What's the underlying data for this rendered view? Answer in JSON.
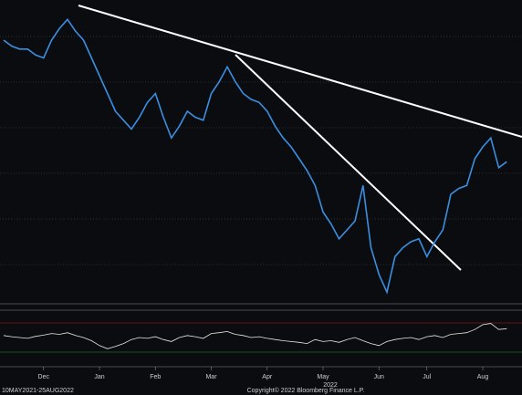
{
  "chart_data": [
    {
      "type": "line",
      "date_range": "10MAY2021-25AUG2022",
      "copyright": "Copyright© 2022 Bloomberg Finance L.P.",
      "year_label": "2022",
      "categories": [
        null,
        null,
        null,
        null,
        null,
        "Dec",
        null,
        null,
        null,
        null,
        null,
        null,
        "Jan",
        null,
        null,
        null,
        null,
        null,
        null,
        "Feb",
        null,
        null,
        null,
        null,
        null,
        null,
        "Mar",
        null,
        null,
        null,
        null,
        null,
        null,
        "Apr",
        null,
        null,
        null,
        null,
        null,
        null,
        "May",
        null,
        null,
        null,
        null,
        null,
        null,
        "Jun",
        null,
        null,
        null,
        null,
        null,
        "Jul",
        null,
        null,
        null,
        null,
        null,
        null,
        "Aug",
        null,
        null,
        null
      ],
      "series": [
        {
          "color": "#3a8fe0",
          "values": [
            88,
            86,
            85,
            85,
            83,
            82,
            88,
            92,
            95,
            91,
            88,
            82,
            76,
            70,
            64,
            61,
            58,
            62,
            67,
            70,
            62,
            55,
            59,
            64,
            62,
            61,
            70,
            74,
            79,
            74,
            70,
            68,
            67,
            64,
            59,
            55,
            52,
            48,
            44,
            39,
            30,
            26,
            21,
            24,
            27,
            39,
            18,
            9,
            3,
            15,
            18,
            20,
            21,
            15,
            20,
            24,
            36,
            38,
            39,
            48,
            52,
            55,
            45,
            47
          ]
        }
      ],
      "ylim": [
        0,
        100
      ]
    },
    {
      "type": "line",
      "series": [
        {
          "color": "#e8e8e8",
          "values": [
            55,
            52,
            50,
            48,
            53,
            56,
            60,
            58,
            62,
            55,
            50,
            42,
            30,
            22,
            28,
            35,
            45,
            50,
            48,
            52,
            45,
            40,
            50,
            55,
            52,
            48,
            60,
            62,
            65,
            58,
            55,
            50,
            52,
            48,
            45,
            42,
            40,
            38,
            35,
            45,
            40,
            42,
            38,
            45,
            50,
            42,
            35,
            30,
            40,
            45,
            48,
            50,
            45,
            52,
            55,
            50,
            58,
            60,
            62,
            70,
            82,
            85,
            70,
            72
          ]
        }
      ],
      "ylim": [
        0,
        100
      ]
    }
  ]
}
